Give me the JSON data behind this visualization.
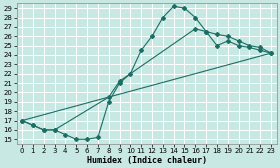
{
  "xlabel": "Humidex (Indice chaleur)",
  "xlim": [
    -0.5,
    23.5
  ],
  "ylim": [
    14.5,
    29.5
  ],
  "xticks": [
    0,
    1,
    2,
    3,
    4,
    5,
    6,
    7,
    8,
    9,
    10,
    11,
    12,
    13,
    14,
    15,
    16,
    17,
    18,
    19,
    20,
    21,
    22,
    23
  ],
  "yticks": [
    15,
    16,
    17,
    18,
    19,
    20,
    21,
    22,
    23,
    24,
    25,
    26,
    27,
    28,
    29
  ],
  "bg_color": "#c8e8e4",
  "grid_color": "#b0d8d4",
  "line_color": "#1a6e64",
  "line1_x": [
    0,
    1,
    2,
    3,
    4,
    5,
    6,
    7,
    8,
    9,
    10,
    11,
    12,
    13,
    14,
    15,
    16,
    17,
    18,
    19,
    20,
    21,
    22,
    23
  ],
  "line1_y": [
    17,
    16.5,
    16,
    16,
    15.5,
    15,
    15,
    15.2,
    19.0,
    21.0,
    22.0,
    24.5,
    26.0,
    28.0,
    29.2,
    29.0,
    28.0,
    26.5,
    25.0,
    25.5,
    25.0,
    24.8,
    24.5,
    24.2
  ],
  "line2_x": [
    0,
    1,
    2,
    3,
    8,
    9,
    16,
    17,
    18,
    19,
    20,
    21,
    22,
    23
  ],
  "line2_y": [
    17,
    16.5,
    16,
    16,
    19.5,
    21.2,
    26.8,
    26.5,
    26.2,
    26.0,
    25.5,
    25.0,
    24.8,
    24.2
  ],
  "line3_x": [
    0,
    23
  ],
  "line3_y": [
    17.0,
    24.2
  ]
}
